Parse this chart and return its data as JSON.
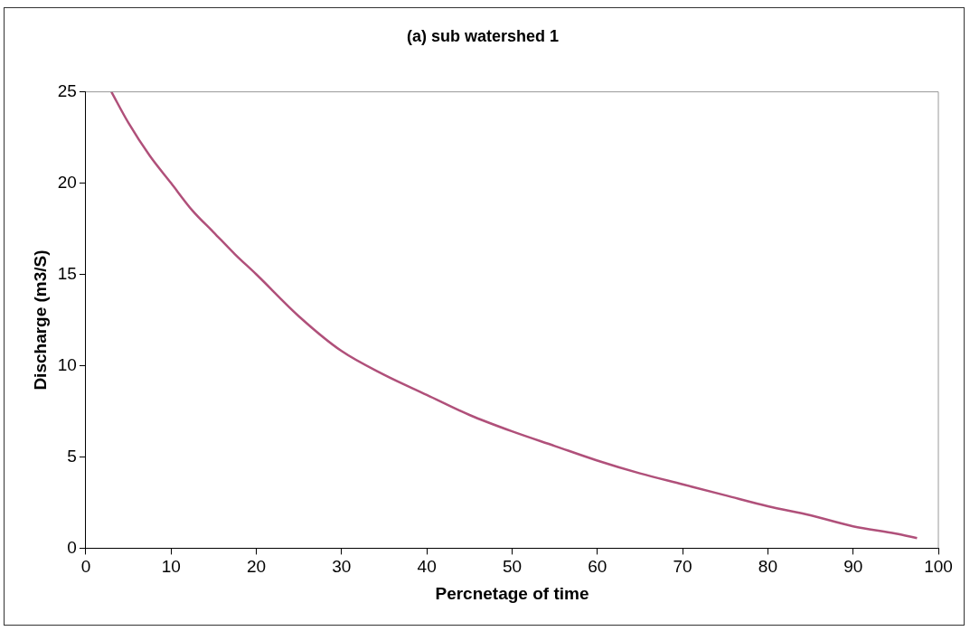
{
  "chart_data": {
    "type": "line",
    "title": "(a) sub watershed 1",
    "xlabel": "Percnetage of time",
    "ylabel": "Discharge (m3/S)",
    "x": [
      3,
      5,
      7.5,
      10,
      12.5,
      15,
      17.5,
      20,
      25,
      30,
      35,
      40,
      45,
      50,
      55,
      60,
      65,
      70,
      75,
      80,
      85,
      90,
      95,
      97.5
    ],
    "series": [
      {
        "color": "#b0507a",
        "values": [
          25,
          23.3,
          21.5,
          20,
          18.5,
          17.3,
          16.1,
          15,
          12.7,
          10.8,
          9.5,
          8.4,
          7.3,
          6.4,
          5.6,
          4.8,
          4.1,
          3.5,
          2.9,
          2.3,
          1.8,
          1.2,
          0.8,
          0.55
        ]
      }
    ],
    "xlim": [
      0,
      100
    ],
    "xticks": [
      0,
      10,
      20,
      30,
      40,
      50,
      60,
      70,
      80,
      90,
      100
    ],
    "ylim": [
      0,
      25
    ],
    "yticks": [
      0,
      5,
      10,
      15,
      20,
      25
    ],
    "grid": false,
    "legend": false,
    "marker": "none",
    "line_style": "solid"
  }
}
